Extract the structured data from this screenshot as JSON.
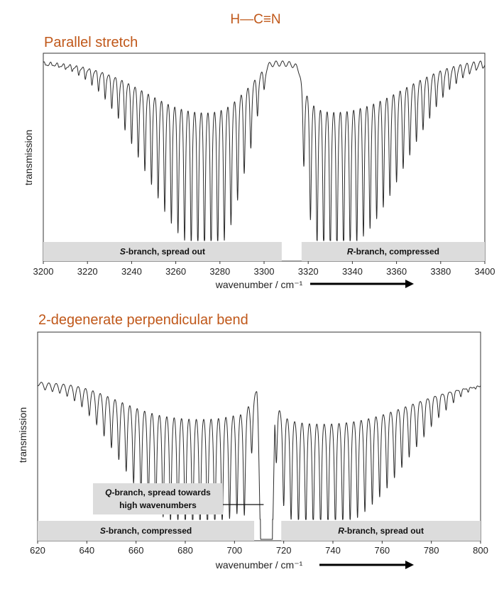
{
  "molecule": "H—C≡N",
  "chart_data": [
    {
      "type": "line",
      "title": "Parallel stretch",
      "xlabel": "wavenumber / cm⁻¹",
      "ylabel": "transmission",
      "xlim": [
        3200,
        3400
      ],
      "xticks": [
        3200,
        3220,
        3240,
        3260,
        3280,
        3300,
        3320,
        3340,
        3360,
        3380,
        3400
      ],
      "yticks_visible": false,
      "grid": false,
      "arrow_direction": "right",
      "series": [
        {
          "line_positions": [
            3300,
            3297,
            3294,
            3291,
            3288,
            3285,
            3282,
            3279,
            3276,
            3273,
            3270,
            3267,
            3264,
            3261,
            3258,
            3255,
            3252,
            3249,
            3246,
            3243,
            3240,
            3237,
            3234,
            3231,
            3228,
            3225,
            3222,
            3219,
            3216,
            3213,
            3210,
            3207,
            3204,
            3201,
            3318,
            3321,
            3324,
            3327,
            3330,
            3333,
            3336,
            3339,
            3342,
            3345,
            3348,
            3351,
            3354,
            3357,
            3360,
            3363,
            3366,
            3369,
            3372,
            3375,
            3378,
            3381,
            3384,
            3387,
            3390,
            3393,
            3396,
            3399
          ],
          "relative_depth": [
            0.14,
            0.28,
            0.45,
            0.58,
            0.72,
            0.85,
            0.93,
            0.97,
            0.99,
            0.99,
            0.98,
            0.96,
            0.93,
            0.89,
            0.84,
            0.78,
            0.71,
            0.64,
            0.57,
            0.5,
            0.43,
            0.36,
            0.3,
            0.25,
            0.2,
            0.16,
            0.13,
            0.1,
            0.08,
            0.06,
            0.05,
            0.04,
            0.03,
            0.03,
            0.55,
            0.83,
            0.95,
            0.99,
            1.0,
            1.0,
            0.99,
            0.97,
            0.94,
            0.9,
            0.86,
            0.81,
            0.75,
            0.69,
            0.62,
            0.55,
            0.48,
            0.41,
            0.35,
            0.29,
            0.23,
            0.18,
            0.14,
            0.11,
            0.08,
            0.06,
            0.04,
            0.03
          ]
        }
      ],
      "annotations": [
        {
          "italic": "S",
          "text": "-branch, spread out",
          "x_range": [
            3200,
            3308
          ]
        },
        {
          "italic": "R",
          "text": "-branch, compressed",
          "x_range": [
            3317,
            3400
          ]
        }
      ]
    },
    {
      "type": "line",
      "title": "2-degenerate perpendicular bend",
      "xlabel": "wavenumber / cm⁻¹",
      "ylabel": "transmission",
      "xlim": [
        620,
        800
      ],
      "xticks": [
        620,
        640,
        660,
        680,
        700,
        720,
        740,
        760,
        780,
        800
      ],
      "yticks_visible": false,
      "grid": false,
      "arrow_direction": "right",
      "series": [
        {
          "line_positions": [
            707,
            704,
            701,
            698,
            695,
            692,
            689,
            686,
            683,
            680,
            677,
            674,
            671,
            668,
            665,
            662,
            659,
            656,
            653,
            650,
            647,
            644,
            641,
            638,
            635,
            632,
            629,
            626,
            623,
            717,
            720,
            723,
            726,
            729,
            732,
            735,
            738,
            741,
            744,
            747,
            750,
            753,
            756,
            759,
            762,
            765,
            768,
            771,
            774,
            777,
            780,
            783,
            786,
            789,
            792,
            795,
            798
          ],
          "relative_depth": [
            0.45,
            0.9,
            0.87,
            0.9,
            0.94,
            0.96,
            0.97,
            0.97,
            0.97,
            0.96,
            0.94,
            0.92,
            0.89,
            0.85,
            0.79,
            0.73,
            0.66,
            0.58,
            0.5,
            0.42,
            0.34,
            0.26,
            0.2,
            0.14,
            0.1,
            0.07,
            0.05,
            0.04,
            0.03,
            0.55,
            0.85,
            0.94,
            0.97,
            0.99,
            1.0,
            1.0,
            1.0,
            0.99,
            0.97,
            0.95,
            0.92,
            0.88,
            0.83,
            0.78,
            0.72,
            0.65,
            0.58,
            0.51,
            0.44,
            0.37,
            0.3,
            0.24,
            0.19,
            0.14,
            0.1,
            0.07,
            0.05
          ]
        }
      ],
      "q_branch_center": 713,
      "annotations": [
        {
          "italic": "S",
          "text": "-branch, compressed",
          "x_range": [
            620,
            708
          ]
        },
        {
          "italic": "R",
          "text": "-branch, spread out",
          "x_range": [
            719,
            800
          ]
        },
        {
          "italic": "Q",
          "text": "-branch, spread towards",
          "text2": "high wavenumbers",
          "points_to": 713
        }
      ]
    }
  ]
}
